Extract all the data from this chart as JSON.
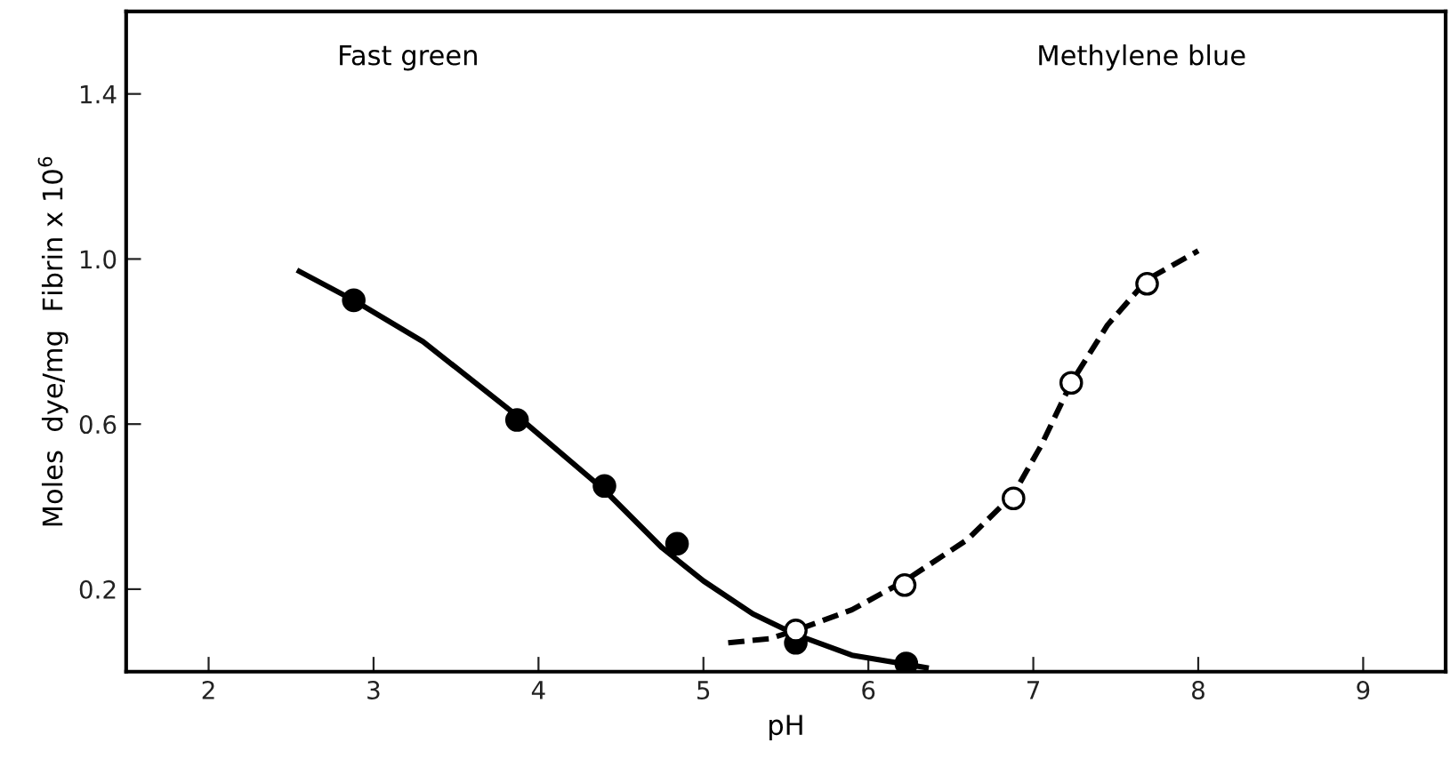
{
  "chart_data": {
    "type": "line",
    "xlabel": "pH",
    "ylabel": "Moles  dye/mg  Fibrin x 10$^{6}$",
    "annotations": [
      "Fast green",
      "Methylene blue"
    ],
    "xlim": [
      1.5,
      9.5
    ],
    "xticks": [
      2,
      3,
      4,
      5,
      6,
      7,
      8,
      9
    ],
    "ylim": [
      0,
      1.6
    ],
    "yticks": [
      {
        "value": 0.2,
        "label": "0.2"
      },
      {
        "value": 0.6,
        "label": "0.6"
      },
      {
        "value": 1.0,
        "label": "1.0"
      },
      {
        "value": 1.4,
        "label": "1.4"
      }
    ],
    "grid": false,
    "legend": false,
    "series": [
      {
        "type": "line",
        "color": "#000000",
        "line_style": "solid",
        "marker": "none",
        "x": [
          2.55,
          2.88,
          3.3,
          3.87,
          4.4,
          4.75,
          5.0,
          5.3,
          5.56,
          5.9,
          6.2,
          6.35
        ],
        "values": [
          0.97,
          0.9,
          0.8,
          0.62,
          0.44,
          0.3,
          0.22,
          0.14,
          0.09,
          0.04,
          0.02,
          0.01
        ]
      },
      {
        "type": "line",
        "color": "#000000",
        "line_style": "dashed",
        "marker": "none",
        "x": [
          5.15,
          5.4,
          5.56,
          5.9,
          6.22,
          6.6,
          6.88,
          7.05,
          7.23,
          7.45,
          7.69,
          8.0
        ],
        "values": [
          0.07,
          0.08,
          0.1,
          0.15,
          0.22,
          0.32,
          0.43,
          0.55,
          0.7,
          0.84,
          0.95,
          1.02
        ]
      },
      {
        "type": "scatter",
        "color": "#000000",
        "marker": "circle",
        "x": [
          2.88,
          3.87,
          4.4,
          4.84,
          5.56,
          6.23
        ],
        "values": [
          0.9,
          0.61,
          0.45,
          0.31,
          0.07,
          0.02
        ]
      },
      {
        "type": "scatter",
        "color": "#ffffff",
        "marker": "circle",
        "x": [
          5.56,
          6.22,
          6.88,
          7.23,
          7.69
        ],
        "values": [
          0.1,
          0.21,
          0.42,
          0.7,
          0.94
        ]
      }
    ]
  }
}
